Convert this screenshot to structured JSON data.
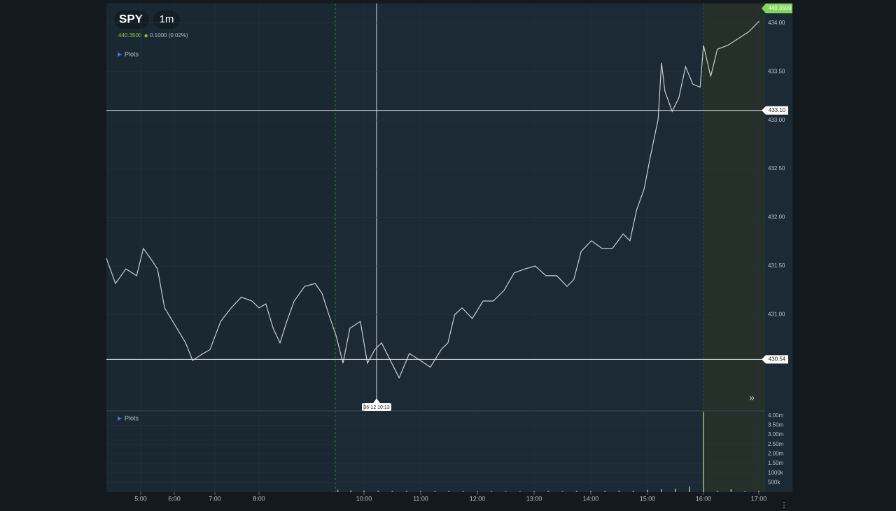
{
  "header": {
    "symbol": "SPY",
    "interval": "1m",
    "last_price": "440.3500",
    "change": "0.1000 (0.02%)",
    "plots_price": "Plots",
    "plots_volume": "Plots",
    "crosshair_label": "06-12 10:13"
  },
  "chart_data": [
    {
      "type": "line",
      "name": "price",
      "color": "#c9cdd0",
      "x": [
        3.98,
        4.25,
        4.56,
        4.88,
        5.08,
        5.29,
        5.5,
        5.71,
        6.02,
        6.28,
        6.45,
        6.71,
        6.88,
        7.13,
        7.37,
        7.6,
        7.84,
        8,
        8.13,
        8.27,
        8.4,
        8.53,
        8.67,
        8.87,
        9.07,
        9.2,
        9.33,
        9.47,
        9.6,
        9.73,
        9.93,
        10.06,
        10.19,
        10.31,
        10.43,
        10.62,
        10.8,
        10.99,
        11.17,
        11.36,
        11.48,
        11.6,
        11.73,
        11.91,
        12.1,
        12.28,
        12.47,
        12.65,
        12.84,
        13.02,
        13.21,
        13.4,
        13.58,
        13.7,
        13.83,
        14.01,
        14.2,
        14.38,
        14.57,
        14.69,
        14.81,
        14.94,
        15.06,
        15.19,
        15.25,
        15.31,
        15.44,
        15.56,
        15.68,
        15.81,
        15.94,
        16,
        16.13,
        16.25,
        16.44,
        16.63,
        16.82,
        17.01
      ],
      "values": [
        431.58,
        431.32,
        431.47,
        431.4,
        431.68,
        431.58,
        431.47,
        431.07,
        430.89,
        430.71,
        430.53,
        430.6,
        430.64,
        430.93,
        431.07,
        431.18,
        431.14,
        431.07,
        431.11,
        430.86,
        430.71,
        430.93,
        431.14,
        431.29,
        431.32,
        431.22,
        431,
        430.78,
        430.5,
        430.86,
        430.93,
        430.5,
        430.64,
        430.71,
        430.57,
        430.35,
        430.6,
        430.53,
        430.46,
        430.64,
        430.71,
        431,
        431.07,
        430.96,
        431.14,
        431.14,
        431.25,
        431.43,
        431.47,
        431.5,
        431.4,
        431.4,
        431.29,
        431.36,
        431.65,
        431.76,
        431.68,
        431.68,
        431.83,
        431.76,
        432.08,
        432.29,
        432.65,
        433.01,
        433.59,
        433.3,
        433.09,
        433.23,
        433.55,
        433.37,
        433.34,
        433.77,
        433.45,
        433.73,
        433.77,
        433.84,
        433.91,
        434.02
      ],
      "xlim": [
        3.98,
        17.11
      ],
      "ylim": [
        430.01,
        434.2
      ],
      "xticks": [
        {
          "value": 5,
          "label": "5:00"
        },
        {
          "value": 6,
          "label": "6:00"
        },
        {
          "value": 7,
          "label": "7:00"
        },
        {
          "value": 8,
          "label": "8:00"
        },
        {
          "value": 10,
          "label": "10:00"
        },
        {
          "value": 11,
          "label": "11:00"
        },
        {
          "value": 12,
          "label": "12:00"
        },
        {
          "value": 13,
          "label": "13:00"
        },
        {
          "value": 14,
          "label": "14:00"
        },
        {
          "value": 15,
          "label": "15:00"
        },
        {
          "value": 16,
          "label": "16:00"
        },
        {
          "value": 17,
          "label": "17:00"
        }
      ],
      "yticks": [
        {
          "value": 434,
          "label": "434.00"
        },
        {
          "value": 433.5,
          "label": "433.50"
        },
        {
          "value": 433,
          "label": "433.00"
        },
        {
          "value": 432.5,
          "label": "432.50"
        },
        {
          "value": 432,
          "label": "432.00"
        },
        {
          "value": 431.5,
          "label": "431.50"
        },
        {
          "value": 431,
          "label": "431.00"
        }
      ],
      "levels": [
        {
          "value": 433.1,
          "label": "433.10"
        },
        {
          "value": 430.54,
          "label": "430.54"
        }
      ]
    },
    {
      "type": "bar",
      "name": "volume",
      "color": "#7f9a6c",
      "x": [
        9.5,
        9.75,
        10,
        10.25,
        10.5,
        10.75,
        11,
        11.25,
        11.5,
        11.75,
        12,
        12.25,
        12.5,
        12.75,
        13,
        13.25,
        13.5,
        13.75,
        14,
        14.25,
        14.5,
        14.75,
        15,
        15.25,
        15.5,
        15.75,
        16,
        16.25,
        16.5,
        16.75,
        17
      ],
      "values": [
        120000,
        90000,
        80000,
        70000,
        60000,
        60000,
        50000,
        50000,
        60000,
        50000,
        40000,
        50000,
        40000,
        40000,
        50000,
        60000,
        40000,
        60000,
        50000,
        60000,
        80000,
        70000,
        120000,
        150000,
        180000,
        300000,
        4200000,
        60000,
        150000,
        40000,
        60000
      ],
      "ylim": [
        0,
        4250000
      ],
      "yticks": [
        {
          "value": 4000000,
          "label": "4.00m"
        },
        {
          "value": 3500000,
          "label": "3.50m"
        },
        {
          "value": 3000000,
          "label": "3.00m"
        },
        {
          "value": 2500000,
          "label": "2.50m"
        },
        {
          "value": 2000000,
          "label": "2.00m"
        },
        {
          "value": 1500000,
          "label": "1.50m"
        },
        {
          "value": 1000000,
          "label": "1000k"
        },
        {
          "value": 500000,
          "label": "500k"
        }
      ]
    }
  ]
}
